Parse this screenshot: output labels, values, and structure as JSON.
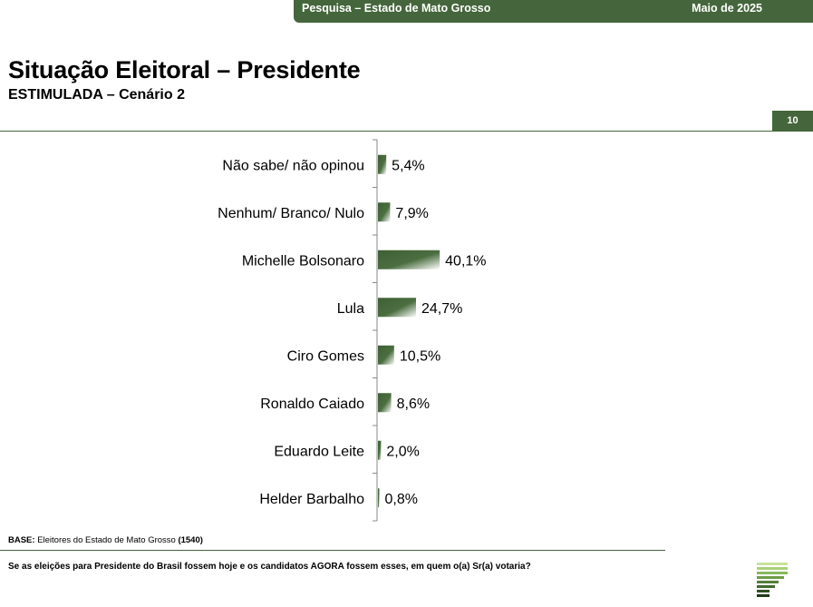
{
  "header": {
    "survey_label": "Pesquisa – Estado de Mato Grosso",
    "date_label": "Maio de 2025",
    "page_number": "10",
    "title": "Situação Eleitoral – Presidente",
    "subtitle": "ESTIMULADA – Cenário 2"
  },
  "footer": {
    "base_label": "BASE:",
    "base_text": "Eleitores do Estado de Mato Grosso",
    "base_count": "(1540)",
    "question": "Se as eleições para Presidente do Brasil fossem hoje e os candidatos AGORA fossem esses, em quem o(a) Sr(a) votaria?"
  },
  "colors": {
    "brand_green": "#45663c",
    "bar_dark": "#3f5f35",
    "bar_light": "#ffffff"
  },
  "chart_data": {
    "type": "bar",
    "orientation": "horizontal",
    "categories": [
      "Não sabe/ não opinou",
      "Nenhum/ Branco/ Nulo",
      "Michelle Bolsonaro",
      "Lula",
      "Ciro Gomes",
      "Ronaldo Caiado",
      "Eduardo Leite",
      "Helder Barbalho"
    ],
    "values": [
      5.4,
      7.9,
      40.1,
      24.7,
      10.5,
      8.6,
      2.0,
      0.8
    ],
    "value_labels": [
      "5,4%",
      "7,9%",
      "40,1%",
      "24,7%",
      "10,5%",
      "8,6%",
      "2,0%",
      "0,8%"
    ],
    "xlim": [
      0,
      100
    ],
    "grid": false,
    "legend": "none"
  }
}
